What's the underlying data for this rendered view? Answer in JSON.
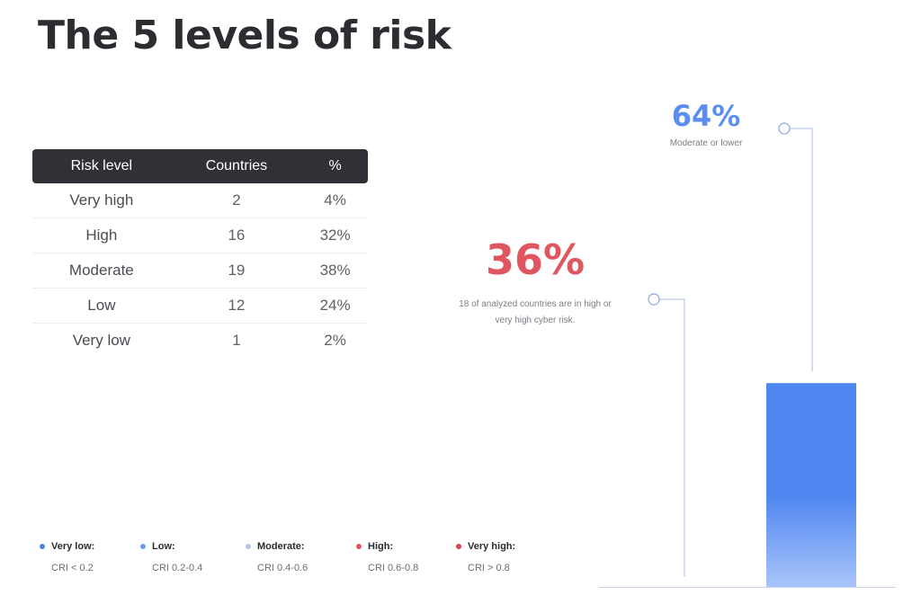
{
  "title": "The 5 levels of risk",
  "table": {
    "headers": [
      "Risk level",
      "Countries",
      "%"
    ],
    "rows": [
      [
        "Very high",
        "2",
        "4%"
      ],
      [
        "High",
        "16",
        "32%"
      ],
      [
        "Moderate",
        "19",
        "38%"
      ],
      [
        "Low",
        "12",
        "24%"
      ],
      [
        "Very low",
        "1",
        "2%"
      ]
    ]
  },
  "legend": [
    {
      "name": "Very low:",
      "range": "CRI < 0.2",
      "color": "#4a7ff0"
    },
    {
      "name": "Low:",
      "range": "CRI 0.2-0.4",
      "color": "#6f9af2"
    },
    {
      "name": "Moderate:",
      "range": "CRI 0.4-0.6",
      "color": "#b6c8f2"
    },
    {
      "name": "High:",
      "range": "CRI 0.6-0.8",
      "color": "#e0555f"
    },
    {
      "name": "Very high:",
      "range": "CRI > 0.8",
      "color": "#d94452"
    }
  ],
  "chart_data": {
    "type": "bar",
    "categories": [
      "High or very high",
      "Moderate or lower"
    ],
    "values": [
      36,
      64
    ],
    "labels": [
      "36%",
      "64%"
    ],
    "annotations": [
      "18 of analyzed countries are in high or very high cyber risk.",
      "Moderate or lower"
    ],
    "colors": [
      "#e05660",
      "#4f86f0"
    ],
    "ylim": [
      0,
      100
    ],
    "grid": false
  }
}
